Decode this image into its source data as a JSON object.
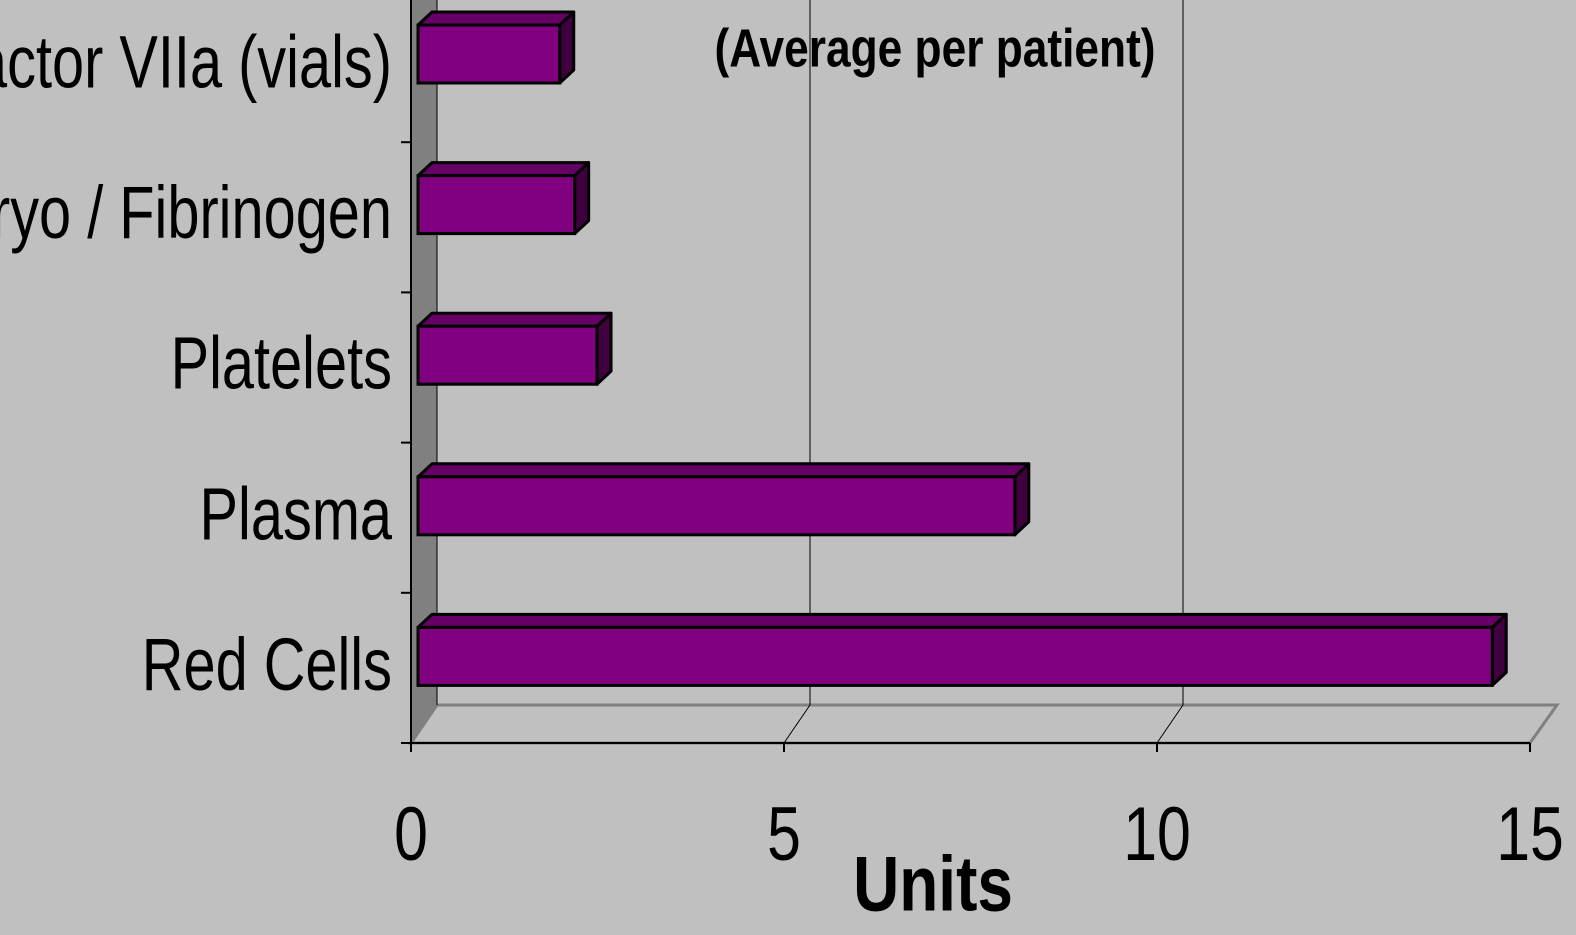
{
  "chart_data": {
    "type": "bar",
    "orientation": "horizontal",
    "subtitle": "(Average per patient)",
    "x_label": "Units",
    "categories": [
      "Factor VIIa (vials)",
      "Cryo / Fibrinogen",
      "Platelets",
      "Plasma",
      "Red Cells"
    ],
    "values": [
      1.9,
      2.1,
      2.4,
      8.0,
      14.4
    ],
    "color": "#800080",
    "xlim": [
      0,
      15
    ],
    "xticks": [
      0,
      5,
      10,
      15
    ],
    "grid": true
  }
}
